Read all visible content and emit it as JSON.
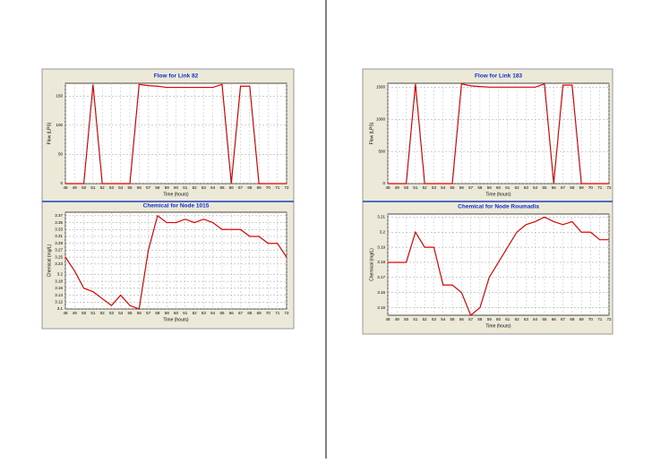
{
  "chart_data": [
    {
      "type": "line",
      "title": "Flow for Link 82",
      "x_label": "Time (hours)",
      "y_label": "Flow (LPS)",
      "color": "#e00000",
      "x": [
        48,
        49,
        50,
        51,
        52,
        53,
        54,
        55,
        56,
        57,
        58,
        59,
        60,
        61,
        62,
        63,
        64,
        65,
        66,
        67,
        68,
        69,
        70,
        71,
        72
      ],
      "values": [
        0,
        0,
        0,
        170,
        0,
        0,
        0,
        0,
        170,
        168,
        167,
        165,
        165,
        165,
        165,
        165,
        165,
        170,
        0,
        167,
        167,
        0,
        0,
        0,
        0
      ],
      "xlim": [
        48,
        72
      ],
      "xticks": [
        48,
        49,
        50,
        51,
        52,
        53,
        54,
        55,
        56,
        57,
        58,
        59,
        60,
        61,
        62,
        63,
        64,
        65,
        66,
        67,
        68,
        69,
        70,
        71,
        72
      ],
      "ylim": [
        0,
        172
      ],
      "yticks": [
        0,
        50,
        100,
        150
      ],
      "grid": true
    },
    {
      "type": "line",
      "title": "Chemical for Node 1015",
      "x_label": "Time (hours)",
      "y_label": "Chemical (mg/L)",
      "color": "#e00000",
      "x": [
        48,
        49,
        50,
        51,
        52,
        53,
        54,
        55,
        56,
        57,
        58,
        59,
        60,
        61,
        62,
        63,
        64,
        65,
        66,
        67,
        68,
        69,
        70,
        71,
        72
      ],
      "values": [
        3.25,
        3.21,
        3.16,
        3.15,
        3.13,
        3.11,
        3.14,
        3.11,
        3.1,
        3.27,
        3.37,
        3.35,
        3.35,
        3.36,
        3.35,
        3.36,
        3.35,
        3.33,
        3.33,
        3.33,
        3.31,
        3.31,
        3.29,
        3.29,
        3.25
      ],
      "xlim": [
        48,
        72
      ],
      "xticks": [
        48,
        49,
        50,
        51,
        52,
        53,
        54,
        55,
        56,
        57,
        58,
        59,
        60,
        61,
        62,
        63,
        64,
        65,
        66,
        67,
        68,
        69,
        70,
        71,
        72
      ],
      "ylim": [
        3.1,
        3.38
      ],
      "yticks": [
        3.1,
        3.12,
        3.14,
        3.16,
        3.18,
        3.2,
        3.23,
        3.25,
        3.27,
        3.29,
        3.31,
        3.33,
        3.35,
        3.37
      ],
      "grid": true
    },
    {
      "type": "line",
      "title": "Flow for Link 183",
      "x_label": "Time (hours)",
      "y_label": "Flow (LPS)",
      "color": "#e00000",
      "x": [
        48,
        49,
        50,
        51,
        52,
        53,
        54,
        55,
        56,
        57,
        58,
        59,
        60,
        61,
        62,
        63,
        64,
        65,
        66,
        67,
        68,
        69,
        70,
        71,
        72
      ],
      "values": [
        0,
        0,
        0,
        1550,
        0,
        0,
        0,
        0,
        1550,
        1520,
        1510,
        1500,
        1500,
        1500,
        1500,
        1500,
        1500,
        1550,
        0,
        1530,
        1530,
        0,
        0,
        0,
        0
      ],
      "xlim": [
        48,
        72
      ],
      "xticks": [
        48,
        49,
        50,
        51,
        52,
        53,
        54,
        55,
        56,
        57,
        58,
        59,
        60,
        61,
        62,
        63,
        64,
        65,
        66,
        67,
        68,
        69,
        70,
        71,
        72
      ],
      "ylim": [
        0,
        1560
      ],
      "yticks": [
        0,
        500,
        1000,
        1500
      ],
      "grid": true
    },
    {
      "type": "line",
      "title": "Chemical for Node Roumadia",
      "x_label": "Time (hours)",
      "y_label": "Chemical (mg/L)",
      "color": "#e00000",
      "x": [
        48,
        49,
        50,
        51,
        52,
        53,
        54,
        55,
        56,
        57,
        58,
        59,
        60,
        61,
        62,
        63,
        64,
        65,
        66,
        67,
        68,
        69,
        70,
        71,
        72
      ],
      "values": [
        3.18,
        3.18,
        3.18,
        3.2,
        3.19,
        3.19,
        3.165,
        3.165,
        3.16,
        3.145,
        3.15,
        3.17,
        3.18,
        3.19,
        3.2,
        3.205,
        3.207,
        3.21,
        3.207,
        3.205,
        3.207,
        3.2,
        3.2,
        3.195,
        3.195
      ],
      "xlim": [
        48,
        72
      ],
      "xticks": [
        48,
        49,
        50,
        51,
        52,
        53,
        54,
        55,
        56,
        57,
        58,
        59,
        60,
        61,
        62,
        63,
        64,
        65,
        66,
        67,
        68,
        69,
        70,
        71,
        72
      ],
      "ylim": [
        3.145,
        3.212
      ],
      "yticks": [
        3.15,
        3.16,
        3.17,
        3.18,
        3.19,
        3.2,
        3.21
      ],
      "grid": true
    }
  ]
}
